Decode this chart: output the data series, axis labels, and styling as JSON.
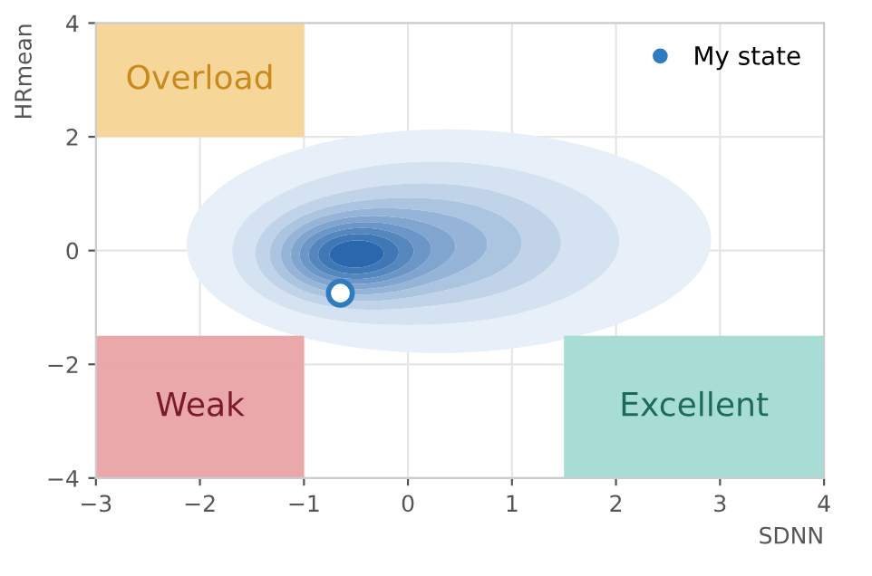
{
  "chart_data": {
    "type": "scatter",
    "xlabel": "SDNN",
    "ylabel": "HRmean",
    "xlim": [
      -3,
      4
    ],
    "ylim": [
      -4,
      4
    ],
    "xticks": [
      -3,
      -2,
      -1,
      0,
      1,
      2,
      3,
      4
    ],
    "yticks": [
      -4,
      -2,
      0,
      2,
      4
    ],
    "grid": true,
    "legend": "top right",
    "marker": "circle",
    "series": [
      {
        "name": "My state",
        "color": "#2f7bbf",
        "x": [
          -0.65
        ],
        "values": [
          -0.75
        ]
      }
    ],
    "annotations": [
      "Overload",
      "Weak",
      "Excellent"
    ]
  }
}
